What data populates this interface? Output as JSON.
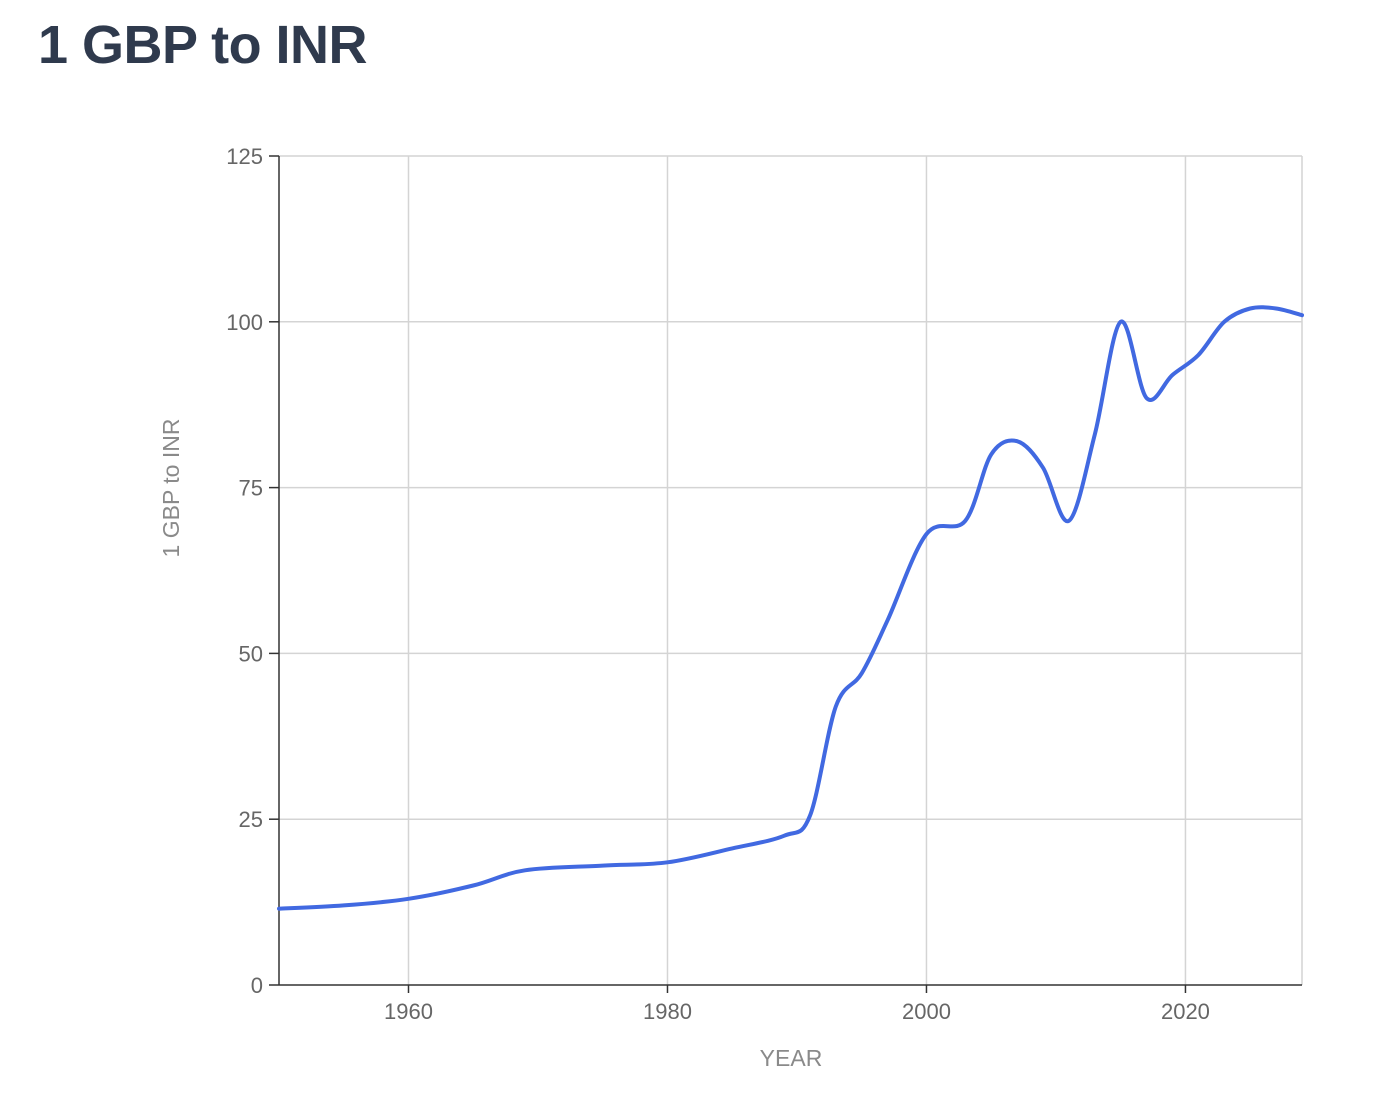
{
  "page": {
    "title": "1 GBP to INR"
  },
  "chart_data": {
    "type": "line",
    "title": "1 GBP to INR",
    "xlabel": "YEAR",
    "ylabel": "1 GBP to INR",
    "xlim": [
      1950,
      2029
    ],
    "ylim": [
      0,
      125
    ],
    "xticks": [
      1960,
      1980,
      2000,
      2020
    ],
    "yticks": [
      0,
      25,
      50,
      75,
      100,
      125
    ],
    "grid": true,
    "colors": {
      "series": "#4169e1"
    },
    "series": [
      {
        "name": "1 GBP to INR",
        "x": [
          1950,
          1955,
          1960,
          1965,
          1969,
          1975,
          1980,
          1985,
          1989,
          1991,
          1993,
          1995,
          1997,
          2000,
          2003,
          2005,
          2007,
          2009,
          2011,
          2013,
          2015,
          2017,
          2019,
          2021,
          2023,
          2025,
          2027,
          2029
        ],
        "values": [
          11.5,
          12,
          13,
          15,
          17.3,
          18,
          18.5,
          20.6,
          22.5,
          25.5,
          42,
          47,
          55,
          68,
          70,
          80,
          82,
          78,
          70,
          83,
          100,
          88.5,
          92,
          95,
          100,
          102,
          102,
          101
        ]
      }
    ]
  }
}
